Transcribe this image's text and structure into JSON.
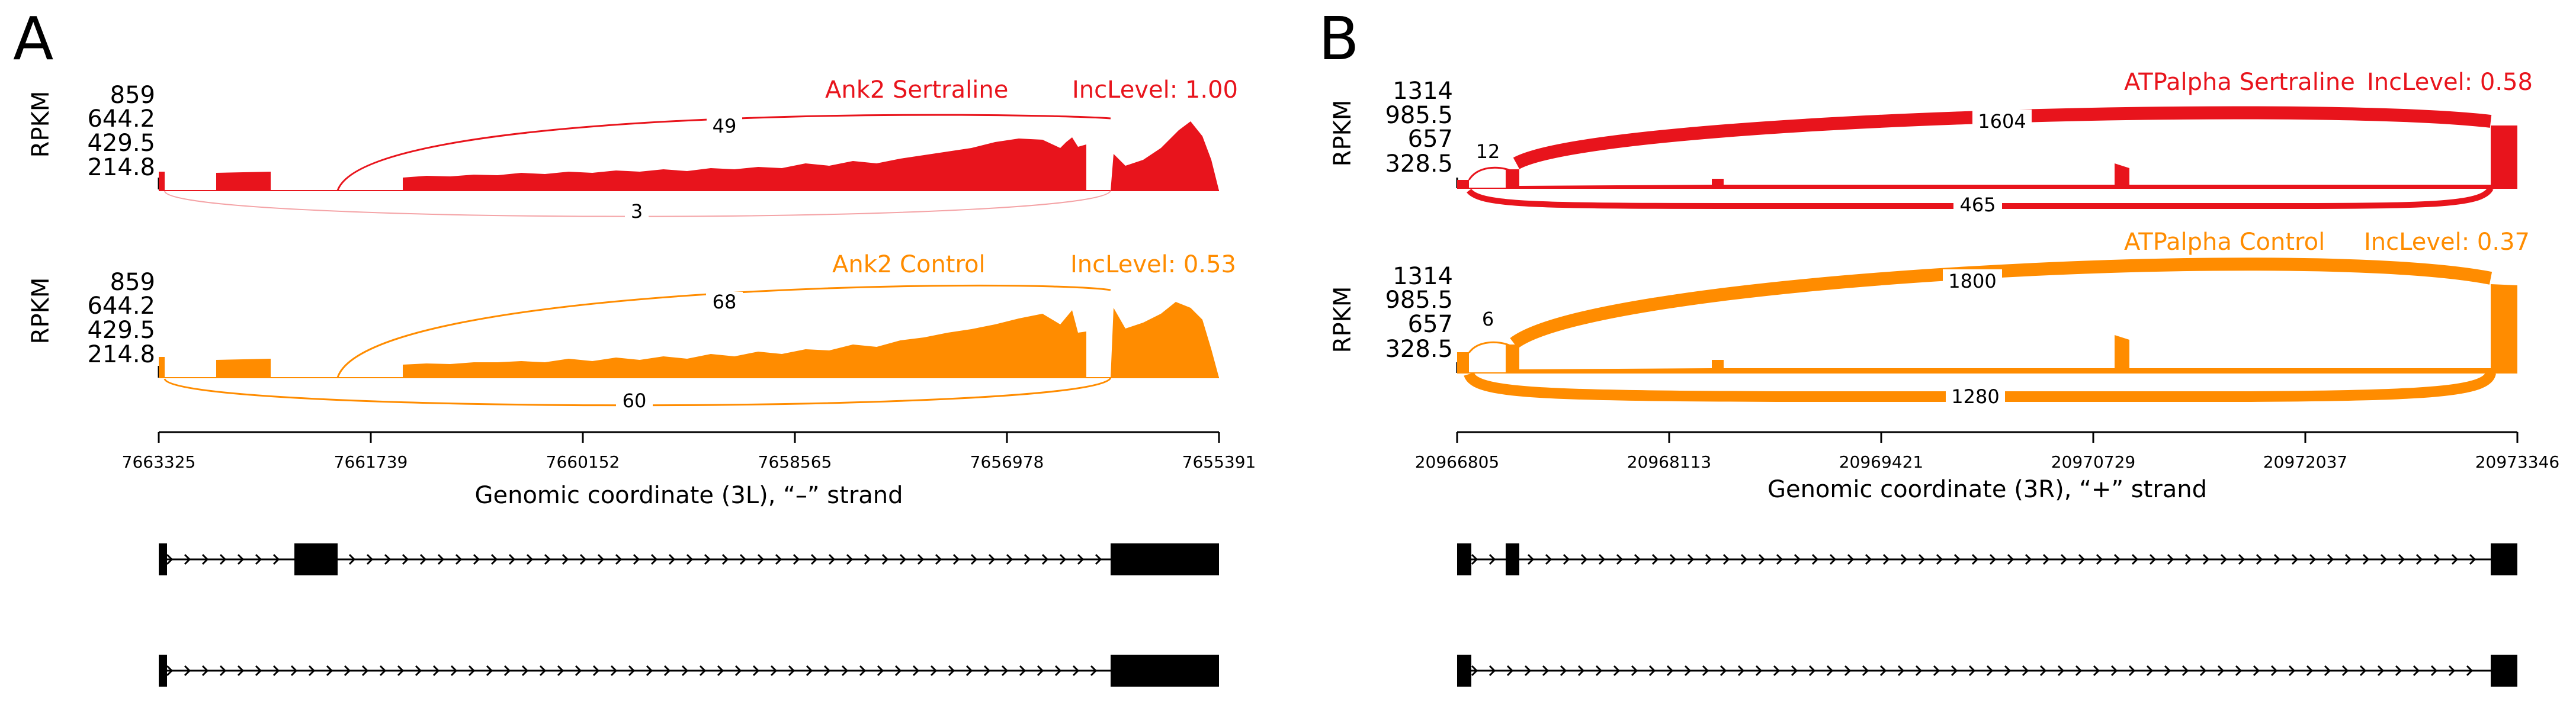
{
  "figure": {
    "type": "sashimi-plot"
  },
  "chart_data": [
    {
      "type": "area",
      "panel": "A",
      "gene": "Ank2",
      "xlabel": "Genomic coordinate (3L), “–” strand",
      "xticks": [
        "7663325",
        "7661739",
        "7660152",
        "7658565",
        "7656978",
        "7655391"
      ],
      "ylabel": "RPKM",
      "yticks": [
        "859",
        "644.2",
        "429.5",
        "214.8"
      ],
      "ylim": [
        0,
        859
      ],
      "series": [
        {
          "name": "Ank2 Sertraline",
          "inc_level": "IncLevel: 1.00",
          "color": "#e8141c",
          "junctions": [
            {
              "count": "49",
              "side": "above",
              "from": "7661739",
              "to": "7656978"
            },
            {
              "count": "3",
              "side": "below",
              "from": "7663325",
              "to": "7656978"
            }
          ]
        },
        {
          "name": "Ank2 Control",
          "inc_level": "IncLevel: 0.53",
          "color": "#ff8c00",
          "junctions": [
            {
              "count": "68",
              "side": "above",
              "from": "7661739",
              "to": "7656978"
            },
            {
              "count": "60",
              "side": "below",
              "from": "7663325",
              "to": "7656978"
            }
          ]
        }
      ],
      "isoforms": [
        {
          "exons": "first, skipped cassette, last"
        },
        {
          "exons": "first, last"
        }
      ]
    },
    {
      "type": "area",
      "panel": "B",
      "gene": "ATPalpha",
      "xlabel": "Genomic coordinate (3R), “+” strand",
      "xticks": [
        "20966805",
        "20968113",
        "20969421",
        "20970729",
        "20972037",
        "20973346"
      ],
      "ylabel": "RPKM",
      "yticks": [
        "1314",
        "985.5",
        "657",
        "328.5"
      ],
      "ylim": [
        0,
        1314
      ],
      "series": [
        {
          "name": "ATPalpha Sertraline",
          "inc_level": "IncLevel: 0.58",
          "color": "#e8141c",
          "junctions": [
            {
              "count": "12",
              "side": "above",
              "from": "20966805",
              "to": "20967000"
            },
            {
              "count": "1604",
              "side": "above",
              "from": "20967000",
              "to": "20973346"
            },
            {
              "count": "465",
              "side": "below",
              "from": "20966805",
              "to": "20973346"
            }
          ]
        },
        {
          "name": "ATPalpha Control",
          "inc_level": "IncLevel: 0.37",
          "color": "#ff8c00",
          "junctions": [
            {
              "count": "6",
              "side": "above",
              "from": "20966805",
              "to": "20967000"
            },
            {
              "count": "1800",
              "side": "above",
              "from": "20967000",
              "to": "20973346"
            },
            {
              "count": "1280",
              "side": "below",
              "from": "20966805",
              "to": "20973346"
            }
          ]
        }
      ],
      "isoforms": [
        {
          "exons": "first, skipped cassette, last"
        },
        {
          "exons": "first, last"
        }
      ]
    }
  ]
}
